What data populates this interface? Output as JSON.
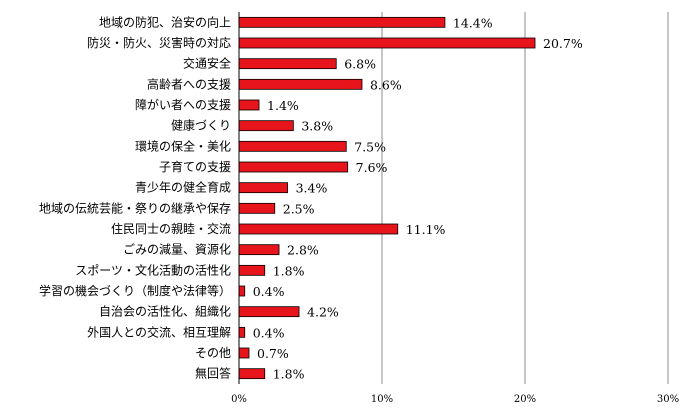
{
  "chart_data": {
    "type": "bar",
    "orientation": "horizontal",
    "categories": [
      "地域の防犯、治安の向上",
      "防災・防火、災害時の対応",
      "交通安全",
      "高齢者への支援",
      "障がい者への支援",
      "健康づくり",
      "環境の保全・美化",
      "子育ての支援",
      "青少年の健全育成",
      "地域の伝統芸能・祭りの継承や保存",
      "住民同士の親睦・交流",
      "ごみの減量、資源化",
      "スポーツ・文化活動の活性化",
      "学習の機会づくり（制度や法律等）",
      "自治会の活性化、組織化",
      "外国人との交流、相互理解",
      "その他",
      "無回答"
    ],
    "values": [
      14.4,
      20.7,
      6.8,
      8.6,
      1.4,
      3.8,
      7.5,
      7.6,
      3.4,
      2.5,
      11.1,
      2.8,
      1.8,
      0.4,
      4.2,
      0.4,
      0.7,
      1.8
    ],
    "value_labels": [
      "14.4%",
      "20.7%",
      "6.8%",
      "8.6%",
      "1.4%",
      "3.8%",
      "7.5%",
      "7.6%",
      "3.4%",
      "2.5%",
      "11.1%",
      "2.8%",
      "1.8%",
      "0.4%",
      "4.2%",
      "0.4%",
      "0.7%",
      "1.8%"
    ],
    "x_ticks": [
      0,
      10,
      20,
      30
    ],
    "x_tick_labels": [
      "0%",
      "10%",
      "20%",
      "30%"
    ],
    "xlim": [
      0,
      30
    ],
    "grid": "vertical",
    "bar_color": "#e8141c",
    "bar_edge_color": "#000000",
    "grid_color": "#8c8c8c"
  }
}
